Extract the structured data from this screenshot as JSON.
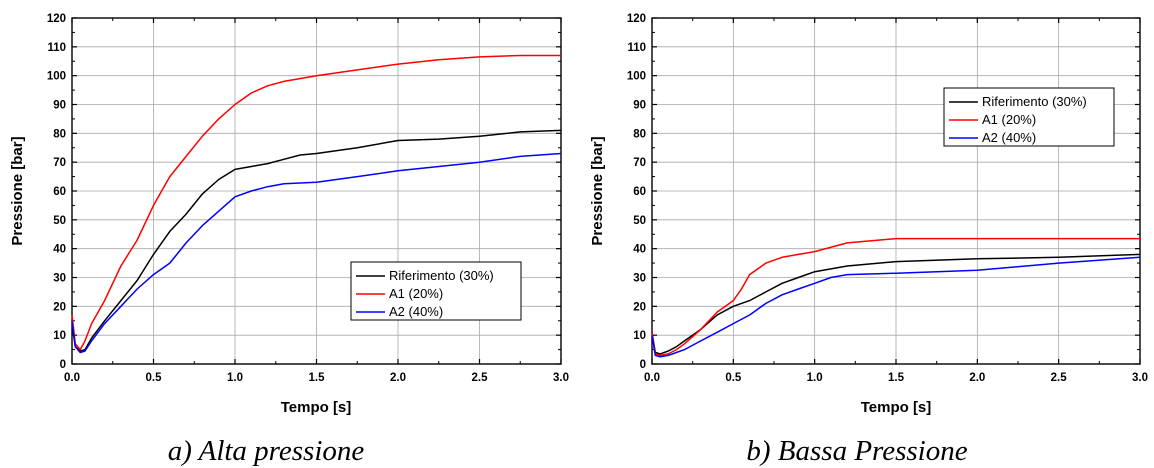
{
  "chart_data": [
    {
      "type": "line",
      "caption": "a) Alta pressione",
      "xlabel": "Tempo [s]",
      "ylabel": "Pressione [bar]",
      "xlim": [
        0,
        3
      ],
      "ylim": [
        0,
        120
      ],
      "xticks": [
        "0.0",
        "0.5",
        "1.0",
        "1.5",
        "2.0",
        "2.5",
        "3.0"
      ],
      "yticks": [
        "0",
        "10",
        "20",
        "30",
        "40",
        "50",
        "60",
        "70",
        "80",
        "90",
        "100",
        "110",
        "120"
      ],
      "grid": true,
      "legend_position": "bottom-right",
      "series": [
        {
          "name": "Riferimento (30%)",
          "color": "#000000",
          "x": [
            0,
            0.02,
            0.05,
            0.08,
            0.12,
            0.2,
            0.3,
            0.4,
            0.5,
            0.6,
            0.7,
            0.8,
            0.9,
            1.0,
            1.1,
            1.2,
            1.3,
            1.4,
            1.5,
            1.75,
            2.0,
            2.25,
            2.5,
            2.75,
            3.0
          ],
          "y": [
            14,
            6,
            4.5,
            5,
            9,
            15,
            22,
            29,
            38,
            46,
            52,
            59,
            64,
            67.5,
            68.5,
            69.5,
            71,
            72.5,
            73,
            75,
            77.5,
            78,
            79,
            80.5,
            81
          ]
        },
        {
          "name": "A1 (20%)",
          "color": "#ff0000",
          "x": [
            0,
            0.02,
            0.05,
            0.08,
            0.12,
            0.2,
            0.3,
            0.4,
            0.5,
            0.6,
            0.7,
            0.8,
            0.9,
            1.0,
            1.1,
            1.2,
            1.3,
            1.5,
            1.75,
            2.0,
            2.25,
            2.5,
            2.75,
            3.0
          ],
          "y": [
            17,
            7,
            5,
            8,
            14,
            22,
            34,
            43,
            55,
            65,
            72,
            79,
            85,
            90,
            94,
            96.5,
            98,
            100,
            102,
            104,
            105.5,
            106.5,
            107,
            107
          ]
        },
        {
          "name": "A2 (40%)",
          "color": "#0000ff",
          "x": [
            0,
            0.02,
            0.05,
            0.08,
            0.12,
            0.2,
            0.3,
            0.4,
            0.5,
            0.6,
            0.7,
            0.8,
            0.9,
            1.0,
            1.1,
            1.2,
            1.3,
            1.5,
            1.75,
            2.0,
            2.25,
            2.5,
            2.75,
            3.0
          ],
          "y": [
            15,
            6,
            4,
            4.5,
            8,
            14,
            20,
            26,
            31,
            35,
            42,
            48,
            53,
            58,
            60,
            61.5,
            62.5,
            63,
            65,
            67,
            68.5,
            70,
            72,
            73
          ]
        }
      ]
    },
    {
      "type": "line",
      "caption": "b) Bassa Pressione",
      "xlabel": "Tempo [s]",
      "ylabel": "Pressione [bar]",
      "xlim": [
        0,
        3
      ],
      "ylim": [
        0,
        120
      ],
      "xticks": [
        "0.0",
        "0.5",
        "1.0",
        "1.5",
        "2.0",
        "2.5",
        "3.0"
      ],
      "yticks": [
        "0",
        "10",
        "20",
        "30",
        "40",
        "50",
        "60",
        "70",
        "80",
        "90",
        "100",
        "110",
        "120"
      ],
      "grid": true,
      "legend_position": "top-right",
      "series": [
        {
          "name": "Riferimento (30%)",
          "color": "#000000",
          "x": [
            0,
            0.02,
            0.05,
            0.1,
            0.15,
            0.2,
            0.3,
            0.4,
            0.5,
            0.6,
            0.7,
            0.8,
            0.9,
            1.0,
            1.2,
            1.5,
            2.0,
            2.5,
            3.0
          ],
          "y": [
            11,
            4,
            3.5,
            4.5,
            6,
            8,
            12,
            17,
            20,
            22,
            25,
            28,
            30,
            32,
            34,
            35.5,
            36.5,
            37,
            38
          ]
        },
        {
          "name": "A1 (20%)",
          "color": "#ff0000",
          "x": [
            0,
            0.02,
            0.05,
            0.1,
            0.15,
            0.2,
            0.3,
            0.4,
            0.5,
            0.55,
            0.6,
            0.7,
            0.8,
            0.9,
            1.0,
            1.2,
            1.5,
            1.75,
            2.0,
            2.5,
            3.0
          ],
          "y": [
            11,
            3.5,
            3,
            3.5,
            5,
            7,
            12,
            18,
            22,
            26,
            31,
            35,
            37,
            38,
            39,
            42,
            43.5,
            43.5,
            43.5,
            43.5,
            43.5
          ]
        },
        {
          "name": "A2 (40%)",
          "color": "#0000ff",
          "x": [
            0,
            0.02,
            0.05,
            0.1,
            0.15,
            0.2,
            0.3,
            0.4,
            0.5,
            0.6,
            0.7,
            0.8,
            0.9,
            1.0,
            1.1,
            1.2,
            1.5,
            2.0,
            2.5,
            3.0
          ],
          "y": [
            10,
            3,
            2.5,
            3,
            4,
            5,
            8,
            11,
            14,
            17,
            21,
            24,
            26,
            28,
            30,
            31,
            31.5,
            32.5,
            35,
            37
          ]
        }
      ]
    }
  ]
}
